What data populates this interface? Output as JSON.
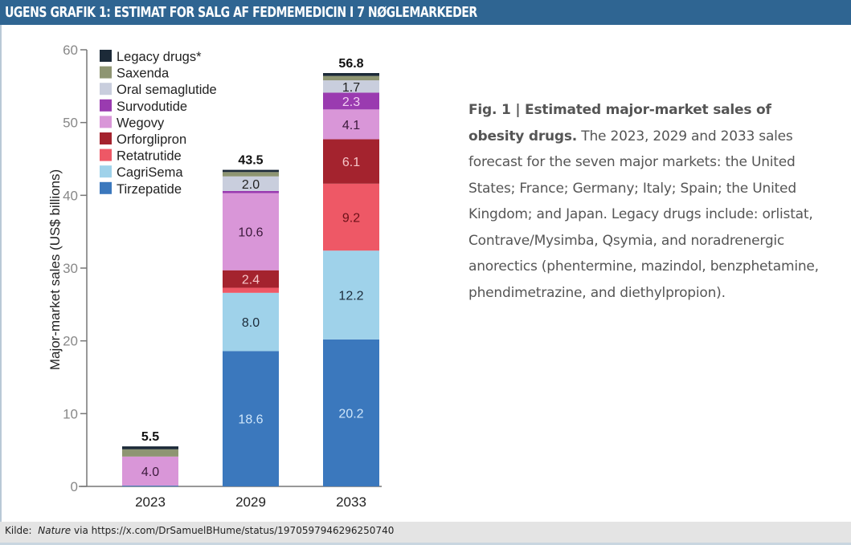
{
  "header": {
    "title": "UGENS GRAFIK 1: ESTIMAT FOR SALG AF FEDMEMEDICIN I 7 NØGLEMARKEDER"
  },
  "caption": {
    "bold": "Fig. 1 | Estimated major-market sales of obesity drugs.",
    "text": " The 2023, 2029 and 2033 sales forecast for the seven major markets: the United States; France; Germany; Italy; Spain; the United Kingdom; and Japan. Legacy drugs include: orlistat, Contrave/Mysimba, Qsymia, and noradrenergic anorectics (phentermine, mazindol, benzphetamine, phendimetrazine, and diethylpropion)."
  },
  "footer": {
    "label": "Kilde:",
    "source": "Nature",
    "via": "via https://x.com/DrSamuelBHume/status/1970597946296250740"
  },
  "chart_data": {
    "type": "bar",
    "stacked": true,
    "title": "",
    "xlabel": "",
    "ylabel": "Major-market sales (US$ billions)",
    "ylim": [
      0,
      60
    ],
    "yticks": [
      0,
      10,
      20,
      30,
      40,
      50,
      60
    ],
    "grid": false,
    "legend_position": "top-left",
    "categories": [
      "2023",
      "2029",
      "2033"
    ],
    "totals": [
      "5.5",
      "43.5",
      "56.8"
    ],
    "series": [
      {
        "name": "Tirzepatide",
        "color": "#3b78bd",
        "label_color": "#cfe6fa",
        "values": [
          0.1,
          18.6,
          20.2
        ],
        "labels": [
          "",
          "18.6",
          "20.2"
        ]
      },
      {
        "name": "CagriSema",
        "color": "#9fd2ea",
        "label_color": "#1c2b3a",
        "values": [
          0,
          8.0,
          12.2
        ],
        "labels": [
          "",
          "8.0",
          "12.2"
        ]
      },
      {
        "name": "Retatrutide",
        "color": "#ee5866",
        "label_color": "#6b1018",
        "values": [
          0,
          0.7,
          9.2
        ],
        "labels": [
          "",
          "",
          "9.2"
        ]
      },
      {
        "name": "Orforglipron",
        "color": "#a4232e",
        "label_color": "#f6c6c9",
        "values": [
          0,
          2.4,
          6.1
        ],
        "labels": [
          "",
          "2.4",
          "6.1"
        ]
      },
      {
        "name": "Wegovy",
        "color": "#d996d8",
        "label_color": "#3c1a3c",
        "values": [
          4.0,
          10.6,
          4.1
        ],
        "labels": [
          "4.0",
          "10.6",
          "4.1"
        ]
      },
      {
        "name": "Survodutide",
        "color": "#9a3bb0",
        "label_color": "#f3d0f3",
        "values": [
          0,
          0.3,
          2.3
        ],
        "labels": [
          "",
          "",
          "2.3"
        ]
      },
      {
        "name": "Oral semaglutide",
        "color": "#c9cedd",
        "label_color": "#222222",
        "values": [
          0,
          2.0,
          1.7
        ],
        "labels": [
          "",
          "2.0",
          "1.7"
        ]
      },
      {
        "name": "Saxenda",
        "color": "#8e9572",
        "label_color": "#222222",
        "values": [
          1.0,
          0.6,
          0.6
        ],
        "labels": [
          "",
          "",
          ""
        ]
      },
      {
        "name": "Legacy drugs*",
        "color": "#1c2a38",
        "label_color": "#ffffff",
        "values": [
          0.4,
          0.3,
          0.4
        ],
        "labels": [
          "",
          "",
          ""
        ]
      }
    ]
  }
}
